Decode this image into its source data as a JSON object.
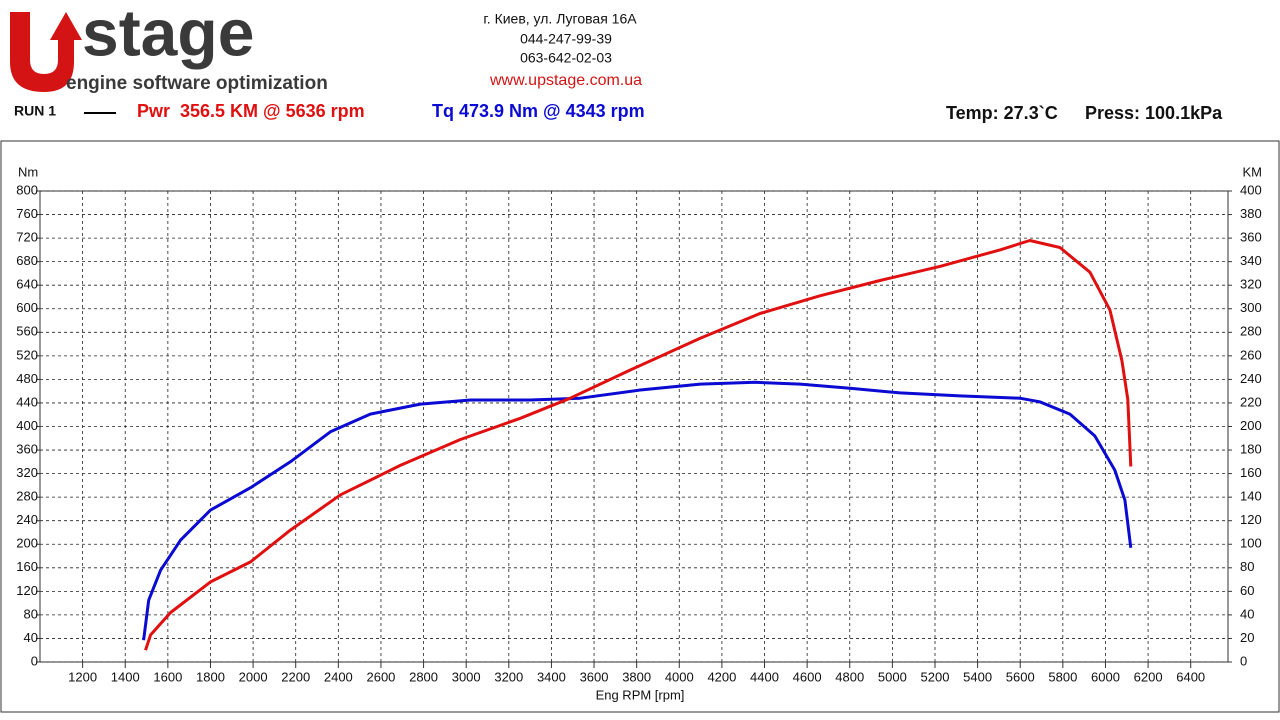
{
  "header": {
    "logo": "stage",
    "tagline": "engine software optimization",
    "address": "г. Киев, ул. Луговая 16А",
    "phone1": "044-247-99-39",
    "phone2": "063-642-02-03",
    "url": "www.upstage.com.ua",
    "run": "RUN 1",
    "power_peak": "Pwr  356.5 KM @ 5636 rpm",
    "torque_peak": "Tq 473.9 Nm @ 4343 rpm",
    "temp": "Temp: 27.3`C",
    "press": "Press: 100.1kPa"
  },
  "chart_data": {
    "type": "line",
    "x_label": "Eng RPM [rpm]",
    "y_label": "Nm",
    "y2_label": "KM",
    "xlim": [
      1000,
      6575
    ],
    "xticks": [
      1200,
      1400,
      1600,
      1800,
      2000,
      2200,
      2400,
      2600,
      2800,
      3000,
      3200,
      3400,
      3600,
      3800,
      4000,
      4200,
      4400,
      4600,
      4800,
      5000,
      5200,
      5400,
      5600,
      5800,
      6000,
      6200,
      6400
    ],
    "ylim": [
      0,
      800
    ],
    "yticks": [
      0,
      40,
      80,
      120,
      160,
      200,
      240,
      280,
      320,
      360,
      400,
      440,
      480,
      520,
      560,
      600,
      640,
      680,
      720,
      760,
      800
    ],
    "y2lim": [
      0,
      400
    ],
    "y2ticks": [
      0,
      20,
      40,
      60,
      80,
      100,
      120,
      140,
      160,
      180,
      200,
      220,
      240,
      260,
      280,
      300,
      320,
      340,
      360,
      380,
      400
    ],
    "grid": true,
    "series": [
      {
        "name": "Tq",
        "color": "#0a0ad2",
        "axis": "y",
        "x": [
          1486,
          1510,
          1566,
          1660,
          1800,
          1988,
          2175,
          2363,
          2550,
          2785,
          3020,
          3300,
          3535,
          3817,
          4098,
          4356,
          4567,
          4801,
          5036,
          5317,
          5598,
          5692,
          5833,
          5950,
          6044,
          6091,
          6119
        ],
        "values": [
          37,
          105,
          156,
          207,
          258,
          296,
          340,
          391,
          421,
          438,
          445,
          445,
          448,
          462,
          472,
          475,
          472,
          465,
          457,
          452,
          448,
          442,
          421,
          384,
          326,
          275,
          194
        ]
      },
      {
        "name": "Pwr",
        "color": "#e01010",
        "axis": "y2",
        "x": [
          1495,
          1519,
          1613,
          1800,
          1988,
          2175,
          2410,
          2691,
          2973,
          3254,
          3488,
          3770,
          4098,
          4379,
          4660,
          4942,
          5223,
          5505,
          5645,
          5786,
          5927,
          6021,
          6077,
          6105,
          6119
        ],
        "values": [
          10,
          23,
          42,
          68,
          85,
          112,
          142,
          167,
          189,
          207,
          224,
          248,
          275,
          296,
          311,
          324,
          336,
          350,
          358,
          352,
          331,
          299,
          256,
          223,
          166
        ]
      }
    ]
  }
}
